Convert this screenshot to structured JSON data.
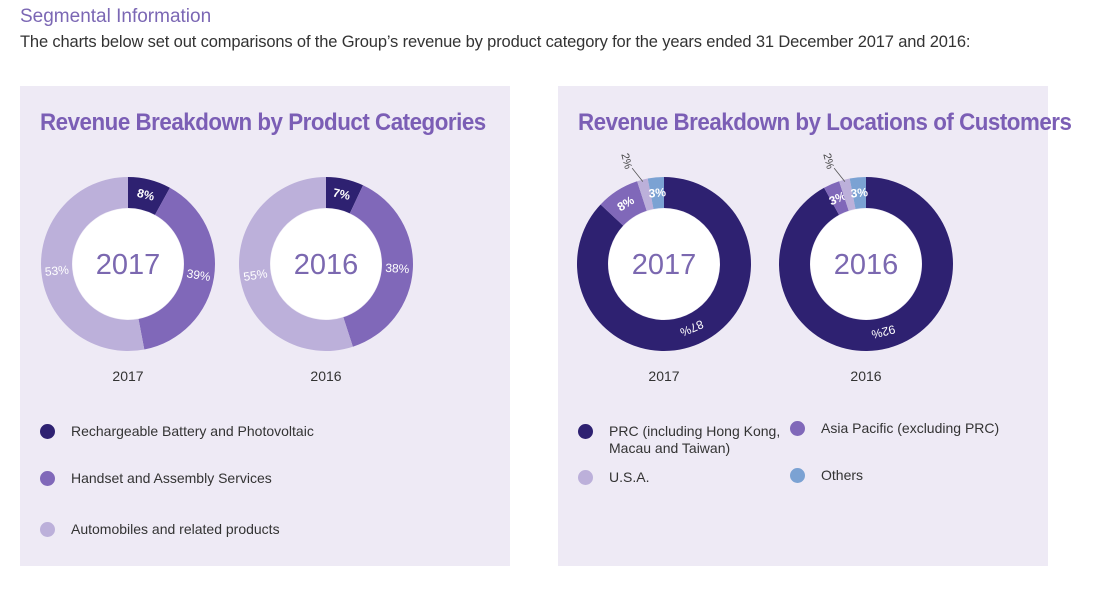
{
  "header": {
    "title": "Segmental Information",
    "intro": "The charts below set out comparisons of the Group’s revenue by product category for the years ended 31 December 2017 and 2016:"
  },
  "colors": {
    "dark": "#2e2171",
    "mid": "#8068b9",
    "light": "#bcb0da",
    "blue": "#7ba2d3",
    "panel": "#eeeaf5"
  },
  "chart_data": [
    {
      "type": "pie",
      "title": "Revenue Breakdown by Product Categories",
      "legend": [
        "Rechargeable Battery and Photovoltaic",
        "Handset and Assembly Services",
        "Automobiles and related products"
      ],
      "years": [
        {
          "label": "2017",
          "center": "2017",
          "values": [
            8,
            39,
            53
          ],
          "labels": [
            "8%",
            "39%",
            "53%"
          ]
        },
        {
          "label": "2016",
          "center": "2016",
          "values": [
            7,
            38,
            55
          ],
          "labels": [
            "7%",
            "38%",
            "55%"
          ]
        }
      ]
    },
    {
      "type": "pie",
      "title": "Revenue Breakdown by Locations of Customers",
      "legend": [
        "PRC (including Hong Kong,\nMacau and Taiwan)",
        "U.S.A.",
        "Asia Pacific (excluding PRC)",
        "Others"
      ],
      "years": [
        {
          "label": "2017",
          "center": "2017",
          "slices": [
            {
              "name": "PRC",
              "value": 87,
              "label": "87%"
            },
            {
              "name": "Asia Pacific",
              "value": 8,
              "label": "8%"
            },
            {
              "name": "U.S.A.",
              "value": 2,
              "label": "2%"
            },
            {
              "name": "Others",
              "value": 3,
              "label": "3%"
            }
          ]
        },
        {
          "label": "2016",
          "center": "2016",
          "slices": [
            {
              "name": "PRC",
              "value": 92,
              "label": "92%"
            },
            {
              "name": "Asia Pacific",
              "value": 3,
              "label": "3%"
            },
            {
              "name": "U.S.A.",
              "value": 2,
              "label": "2%"
            },
            {
              "name": "Others",
              "value": 3,
              "label": "3%"
            }
          ]
        }
      ]
    }
  ]
}
